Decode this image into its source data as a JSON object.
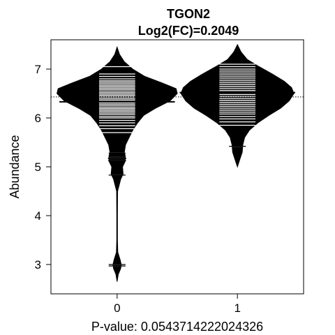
{
  "chart_data": {
    "type": "beanplot",
    "title": "TGON2",
    "subtitle": "Log2(FC)=0.2049",
    "xlabel": "P-value: 0.0543714222024326",
    "ylabel": "Abundance",
    "categories": [
      "0",
      "1"
    ],
    "ylim": [
      2.4,
      7.6
    ],
    "yticks": [
      3,
      4,
      5,
      6,
      7
    ],
    "overall_mean": 6.43,
    "groups": [
      {
        "name": "0",
        "mean": 6.33,
        "density": [
          {
            "y": 2.65,
            "w": 0.0
          },
          {
            "y": 2.8,
            "w": 0.01
          },
          {
            "y": 2.92,
            "w": 0.03
          },
          {
            "y": 3.0,
            "w": 0.035
          },
          {
            "y": 3.1,
            "w": 0.025
          },
          {
            "y": 3.25,
            "w": 0.006
          },
          {
            "y": 3.5,
            "w": 0.003
          },
          {
            "y": 4.0,
            "w": 0.003
          },
          {
            "y": 4.5,
            "w": 0.004
          },
          {
            "y": 4.75,
            "w": 0.03
          },
          {
            "y": 4.85,
            "w": 0.05
          },
          {
            "y": 5.0,
            "w": 0.045
          },
          {
            "y": 5.15,
            "w": 0.075
          },
          {
            "y": 5.3,
            "w": 0.06
          },
          {
            "y": 5.45,
            "w": 0.07
          },
          {
            "y": 5.6,
            "w": 0.1
          },
          {
            "y": 5.75,
            "w": 0.13
          },
          {
            "y": 5.9,
            "w": 0.17
          },
          {
            "y": 6.05,
            "w": 0.22
          },
          {
            "y": 6.2,
            "w": 0.32
          },
          {
            "y": 6.35,
            "w": 0.44
          },
          {
            "y": 6.5,
            "w": 0.5
          },
          {
            "y": 6.6,
            "w": 0.49
          },
          {
            "y": 6.72,
            "w": 0.37
          },
          {
            "y": 6.85,
            "w": 0.23
          },
          {
            "y": 7.0,
            "w": 0.13
          },
          {
            "y": 7.15,
            "w": 0.06
          },
          {
            "y": 7.3,
            "w": 0.02
          },
          {
            "y": 7.45,
            "w": 0.0
          }
        ],
        "points": [
          2.97,
          3.0,
          4.83,
          5.15,
          5.2,
          5.28,
          5.7,
          5.78,
          5.84,
          5.9,
          5.95,
          6.0,
          6.03,
          6.07,
          6.1,
          6.13,
          6.16,
          6.19,
          6.22,
          6.25,
          6.28,
          6.31,
          6.34,
          6.37,
          6.4,
          6.43,
          6.46,
          6.49,
          6.52,
          6.55,
          6.58,
          6.61,
          6.64,
          6.67,
          6.7,
          6.73,
          6.76,
          6.8,
          6.85,
          6.9,
          7.05
        ]
      },
      {
        "name": "1",
        "mean": 6.52,
        "density": [
          {
            "y": 5.0,
            "w": 0.0
          },
          {
            "y": 5.15,
            "w": 0.02
          },
          {
            "y": 5.3,
            "w": 0.04
          },
          {
            "y": 5.45,
            "w": 0.045
          },
          {
            "y": 5.6,
            "w": 0.06
          },
          {
            "y": 5.75,
            "w": 0.1
          },
          {
            "y": 5.9,
            "w": 0.17
          },
          {
            "y": 6.05,
            "w": 0.26
          },
          {
            "y": 6.2,
            "w": 0.36
          },
          {
            "y": 6.35,
            "w": 0.43
          },
          {
            "y": 6.5,
            "w": 0.47
          },
          {
            "y": 6.62,
            "w": 0.45
          },
          {
            "y": 6.75,
            "w": 0.39
          },
          {
            "y": 6.9,
            "w": 0.29
          },
          {
            "y": 7.05,
            "w": 0.18
          },
          {
            "y": 7.2,
            "w": 0.08
          },
          {
            "y": 7.35,
            "w": 0.03
          },
          {
            "y": 7.5,
            "w": 0.0
          }
        ],
        "points": [
          5.42,
          5.85,
          5.92,
          5.98,
          6.03,
          6.08,
          6.12,
          6.16,
          6.2,
          6.24,
          6.28,
          6.32,
          6.36,
          6.4,
          6.44,
          6.48,
          6.52,
          6.56,
          6.6,
          6.64,
          6.68,
          6.72,
          6.76,
          6.8,
          6.84,
          6.88,
          6.92,
          6.96,
          7.0,
          7.05,
          7.1
        ]
      }
    ],
    "colors": {
      "bean": "#000000",
      "beanline": "#ffffff",
      "reference": "#000000"
    }
  }
}
